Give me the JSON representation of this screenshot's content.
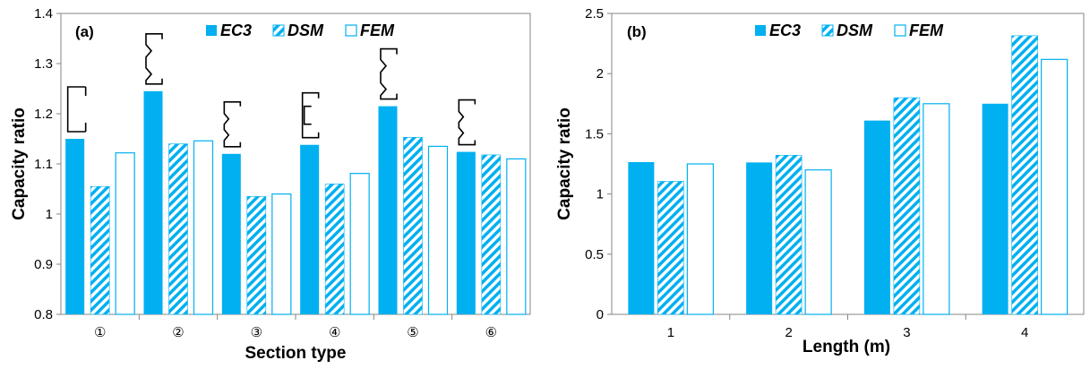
{
  "colors": {
    "ec3": "#00B0F0",
    "dsm_stripe": "#00B0F0",
    "fem_edge": "#00B0F0",
    "axis": "#868686"
  },
  "chart_data": [
    {
      "panel": "(a)",
      "type": "bar",
      "xlabel": "Section type",
      "ylabel": "Capacity ratio",
      "ylim": [
        0.8,
        1.4
      ],
      "yticks": [
        "0.8",
        "0.9",
        "1",
        "1.1",
        "1.2",
        "1.3",
        "1.4"
      ],
      "categories": [
        "①",
        "②",
        "③",
        "④",
        "⑤",
        "⑥"
      ],
      "series": [
        {
          "name": "EC3",
          "values": [
            1.15,
            1.245,
            1.12,
            1.138,
            1.215,
            1.124
          ]
        },
        {
          "name": "DSM",
          "values": [
            1.055,
            1.14,
            1.035,
            1.06,
            1.153,
            1.118
          ]
        },
        {
          "name": "FEM",
          "values": [
            1.122,
            1.146,
            1.04,
            1.081,
            1.135,
            1.11
          ]
        }
      ],
      "legend_position": "top",
      "section_icons": [
        "channel-plain",
        "channel-zigzag-web",
        "channel-double-fold-web",
        "channel-lipped-web",
        "channel-zigzag-web",
        "channel-double-fold-web"
      ]
    },
    {
      "panel": "(b)",
      "type": "bar",
      "xlabel": "Length (m)",
      "ylabel": "Capacity ratio",
      "ylim": [
        0,
        2.5
      ],
      "yticks": [
        "0",
        "0.5",
        "1",
        "1.5",
        "2",
        "2.5"
      ],
      "categories": [
        "1",
        "2",
        "3",
        "4"
      ],
      "series": [
        {
          "name": "EC3",
          "values": [
            1.265,
            1.262,
            1.61,
            1.75
          ]
        },
        {
          "name": "DSM",
          "values": [
            1.105,
            1.322,
            1.8,
            2.315
          ]
        },
        {
          "name": "FEM",
          "values": [
            1.25,
            1.2,
            1.75,
            2.118
          ]
        }
      ],
      "legend_position": "top"
    }
  ]
}
